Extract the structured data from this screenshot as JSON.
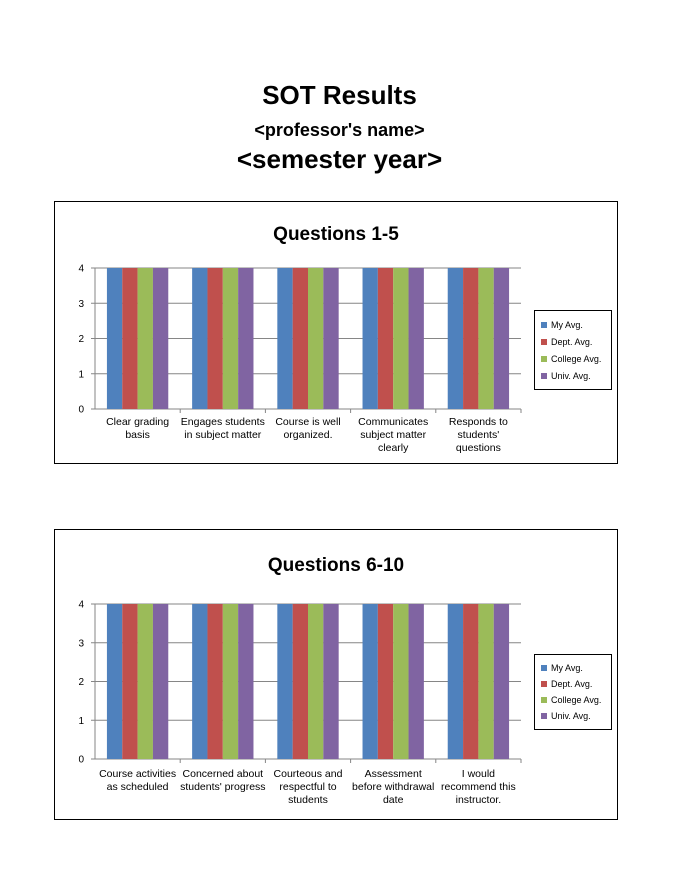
{
  "header": {
    "title": "SOT Results",
    "professor": "<professor's name>",
    "semester": "<semester year>"
  },
  "colors": {
    "my_avg": "#4F81BD",
    "dept_avg": "#C0504D",
    "college_avg": "#9BBB59",
    "univ_avg": "#8064A2"
  },
  "chart_data": [
    {
      "type": "bar",
      "title": "Questions 1-5",
      "categories": [
        "Clear grading basis",
        "Engages students in subject matter",
        "Course is well organized.",
        "Communicates subject matter clearly",
        "Responds to students' questions"
      ],
      "series": [
        {
          "name": "My Avg.",
          "values": [
            4,
            4,
            4,
            4,
            4
          ]
        },
        {
          "name": "Dept. Avg.",
          "values": [
            4,
            4,
            4,
            4,
            4
          ]
        },
        {
          "name": "College Avg.",
          "values": [
            4,
            4,
            4,
            4,
            4
          ]
        },
        {
          "name": "Univ. Avg.",
          "values": [
            4,
            4,
            4,
            4,
            4
          ]
        }
      ],
      "ylim": [
        0,
        4
      ],
      "yticks": [
        "0",
        "1",
        "2",
        "3",
        "4"
      ],
      "grid": true,
      "legend": "right"
    },
    {
      "type": "bar",
      "title": "Questions 6-10",
      "categories": [
        "Course activities as scheduled",
        "Concerned about students' progress",
        "Courteous and respectful to students",
        "Assessment before withdrawal date",
        "I would recommend this instructor."
      ],
      "series": [
        {
          "name": "My Avg.",
          "values": [
            4,
            4,
            4,
            4,
            4
          ]
        },
        {
          "name": "Dept. Avg.",
          "values": [
            4,
            4,
            4,
            4,
            4
          ]
        },
        {
          "name": "College Avg.",
          "values": [
            4,
            4,
            4,
            4,
            4
          ]
        },
        {
          "name": "Univ. Avg.",
          "values": [
            4,
            4,
            4,
            4,
            4
          ]
        }
      ],
      "ylim": [
        0,
        4
      ],
      "yticks": [
        "0",
        "1",
        "2",
        "3",
        "4"
      ],
      "grid": true,
      "legend": "right"
    }
  ]
}
